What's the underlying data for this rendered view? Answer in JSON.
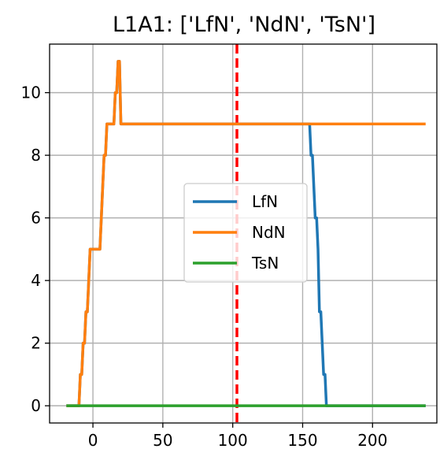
{
  "chart_data": {
    "type": "line",
    "title": "L1A1: ['LfN', 'NdN', 'TsN']",
    "xlabel": "",
    "ylabel": "",
    "xlim": [
      -31,
      246
    ],
    "ylim": [
      -0.55,
      11.55
    ],
    "xticks": [
      0,
      50,
      100,
      150,
      200
    ],
    "yticks": [
      0,
      2,
      4,
      6,
      8,
      10
    ],
    "grid": true,
    "legend_position": "center",
    "vline": {
      "x": 103,
      "color": "#ff0000",
      "style": "dashed"
    },
    "series": [
      {
        "name": "LfN",
        "color": "#1f77b4",
        "x": [
          -18,
          -10,
          -9,
          -8,
          -7,
          -6,
          -5,
          -4,
          -3,
          -2,
          0,
          5,
          6,
          7,
          8,
          9,
          10,
          11,
          15,
          16,
          17,
          18,
          19,
          20,
          25,
          50,
          100,
          150,
          155,
          156,
          157,
          158,
          159,
          160,
          161,
          162,
          163,
          164,
          165,
          166,
          167,
          168,
          200,
          237
        ],
        "y": [
          0,
          0,
          1,
          1,
          2,
          2,
          3,
          3,
          4,
          5,
          5,
          5,
          6,
          7,
          8,
          8,
          9,
          9,
          9,
          10,
          10,
          11,
          11,
          9,
          9,
          9,
          9,
          9,
          9,
          8,
          8,
          7,
          6,
          6,
          5,
          3,
          3,
          2,
          1,
          1,
          0,
          0,
          0,
          0
        ]
      },
      {
        "name": "NdN",
        "color": "#ff7f0e",
        "x": [
          -18,
          -10,
          -9,
          -8,
          -7,
          -6,
          -5,
          -4,
          -3,
          -2,
          0,
          5,
          6,
          7,
          8,
          9,
          10,
          11,
          15,
          16,
          17,
          18,
          19,
          20,
          25,
          50,
          100,
          150,
          200,
          237
        ],
        "y": [
          0,
          0,
          1,
          1,
          2,
          2,
          3,
          3,
          4,
          5,
          5,
          5,
          6,
          7,
          8,
          8,
          9,
          9,
          9,
          10,
          10,
          11,
          11,
          9,
          9,
          9,
          9,
          9,
          9,
          9
        ]
      },
      {
        "name": "TsN",
        "color": "#2ca02c",
        "x": [
          -18,
          237
        ],
        "y": [
          0,
          0
        ]
      }
    ]
  }
}
